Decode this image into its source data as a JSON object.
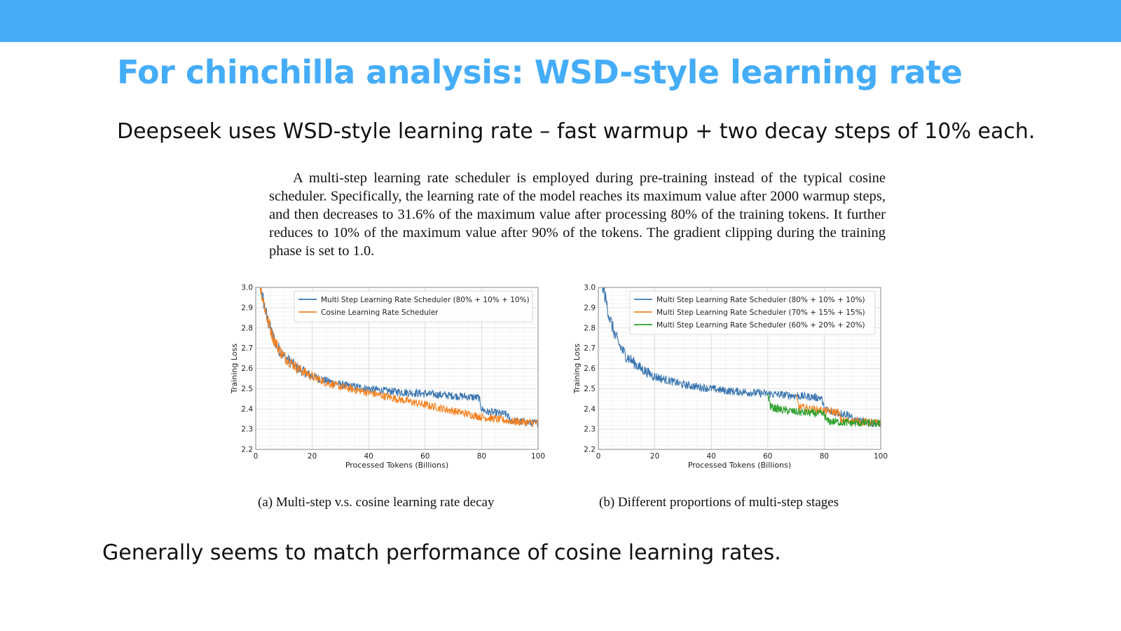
{
  "slide": {
    "title": "For chinchilla analysis: WSD-style learning rate",
    "subtitle": "Deepseek uses WSD-style learning rate – fast warmup + two decay steps of 10% each.",
    "quote": "A multi-step learning rate scheduler is employed during pre-training instead of the typical cosine scheduler. Specifically, the learning rate of the model reaches its maximum value after 2000 warmup steps, and then decreases to 31.6% of the maximum value after processing 80% of the training tokens. It further reduces to 10% of the maximum value after 90% of the tokens. The gradient clipping during the training phase is set to 1.0.",
    "bottom_text": "Generally seems to match performance of cosine learning rates.",
    "accent_color": "#45adf8"
  },
  "chart_data": [
    {
      "type": "line",
      "caption": "(a) Multi-step v.s. cosine learning rate decay",
      "xlabel": "Processed Tokens (Billions)",
      "ylabel": "Training Loss",
      "xlim": [
        0,
        100
      ],
      "ylim": [
        2.2,
        3.0
      ],
      "xticks": [
        0,
        20,
        40,
        60,
        80,
        100
      ],
      "yticks": [
        2.2,
        2.3,
        2.4,
        2.5,
        2.6,
        2.7,
        2.8,
        2.9,
        3.0
      ],
      "grid": true,
      "legend_position": "top-right",
      "series": [
        {
          "name": "Multi Step Learning Rate Scheduler (80% + 10% + 10%)",
          "color": "#3a76b0",
          "x": [
            0,
            2,
            4,
            6,
            8,
            10,
            15,
            20,
            25,
            30,
            35,
            40,
            45,
            50,
            55,
            60,
            65,
            70,
            75,
            79,
            80,
            82,
            85,
            88,
            89,
            90,
            92,
            95,
            98,
            100
          ],
          "y": [
            3.12,
            2.98,
            2.85,
            2.76,
            2.7,
            2.66,
            2.6,
            2.56,
            2.54,
            2.52,
            2.51,
            2.5,
            2.49,
            2.485,
            2.48,
            2.475,
            2.47,
            2.465,
            2.46,
            2.455,
            2.4,
            2.385,
            2.38,
            2.375,
            2.372,
            2.345,
            2.34,
            2.335,
            2.33,
            2.33
          ]
        },
        {
          "name": "Cosine Learning Rate Scheduler",
          "color": "#f58220",
          "x": [
            0,
            2,
            4,
            6,
            8,
            10,
            15,
            20,
            25,
            30,
            35,
            40,
            45,
            50,
            55,
            60,
            65,
            70,
            75,
            80,
            85,
            90,
            95,
            100
          ],
          "y": [
            3.12,
            2.98,
            2.85,
            2.76,
            2.7,
            2.66,
            2.6,
            2.56,
            2.53,
            2.51,
            2.495,
            2.48,
            2.465,
            2.45,
            2.435,
            2.42,
            2.405,
            2.39,
            2.375,
            2.36,
            2.35,
            2.34,
            2.335,
            2.33
          ]
        }
      ]
    },
    {
      "type": "line",
      "caption": "(b) Different proportions of multi-step stages",
      "xlabel": "Processed Tokens (Billions)",
      "ylabel": "Training Loss",
      "xlim": [
        0,
        100
      ],
      "ylim": [
        2.2,
        3.0
      ],
      "xticks": [
        0,
        20,
        40,
        60,
        80,
        100
      ],
      "yticks": [
        2.2,
        2.3,
        2.4,
        2.5,
        2.6,
        2.7,
        2.8,
        2.9,
        3.0
      ],
      "grid": true,
      "legend_position": "top-right",
      "series": [
        {
          "name": "Multi Step Learning Rate Scheduler (80% + 10% + 10%)",
          "color": "#3a76b0",
          "x": [
            0,
            2,
            4,
            6,
            8,
            10,
            15,
            20,
            25,
            30,
            35,
            40,
            45,
            50,
            55,
            60,
            65,
            70,
            75,
            79,
            80,
            82,
            85,
            88,
            89,
            90,
            92,
            95,
            98,
            100
          ],
          "y": [
            3.12,
            2.98,
            2.85,
            2.76,
            2.7,
            2.66,
            2.6,
            2.56,
            2.54,
            2.52,
            2.51,
            2.5,
            2.49,
            2.485,
            2.48,
            2.475,
            2.47,
            2.465,
            2.46,
            2.455,
            2.4,
            2.385,
            2.38,
            2.375,
            2.372,
            2.345,
            2.34,
            2.335,
            2.33,
            2.33
          ]
        },
        {
          "name": "Multi Step Learning Rate Scheduler (70% + 15% + 15%)",
          "color": "#f58220",
          "x": [
            70,
            71,
            75,
            80,
            84,
            85,
            86,
            90,
            95,
            100
          ],
          "y": [
            2.465,
            2.41,
            2.4,
            2.39,
            2.385,
            2.383,
            2.345,
            2.34,
            2.335,
            2.33
          ]
        },
        {
          "name": "Multi Step Learning Rate Scheduler (60% + 20% + 20%)",
          "color": "#2ca02c",
          "x": [
            60,
            61,
            65,
            70,
            75,
            79,
            80,
            81,
            85,
            90,
            95,
            100
          ],
          "y": [
            2.475,
            2.41,
            2.395,
            2.385,
            2.38,
            2.375,
            2.372,
            2.34,
            2.335,
            2.33,
            2.33,
            2.325
          ]
        }
      ]
    }
  ]
}
